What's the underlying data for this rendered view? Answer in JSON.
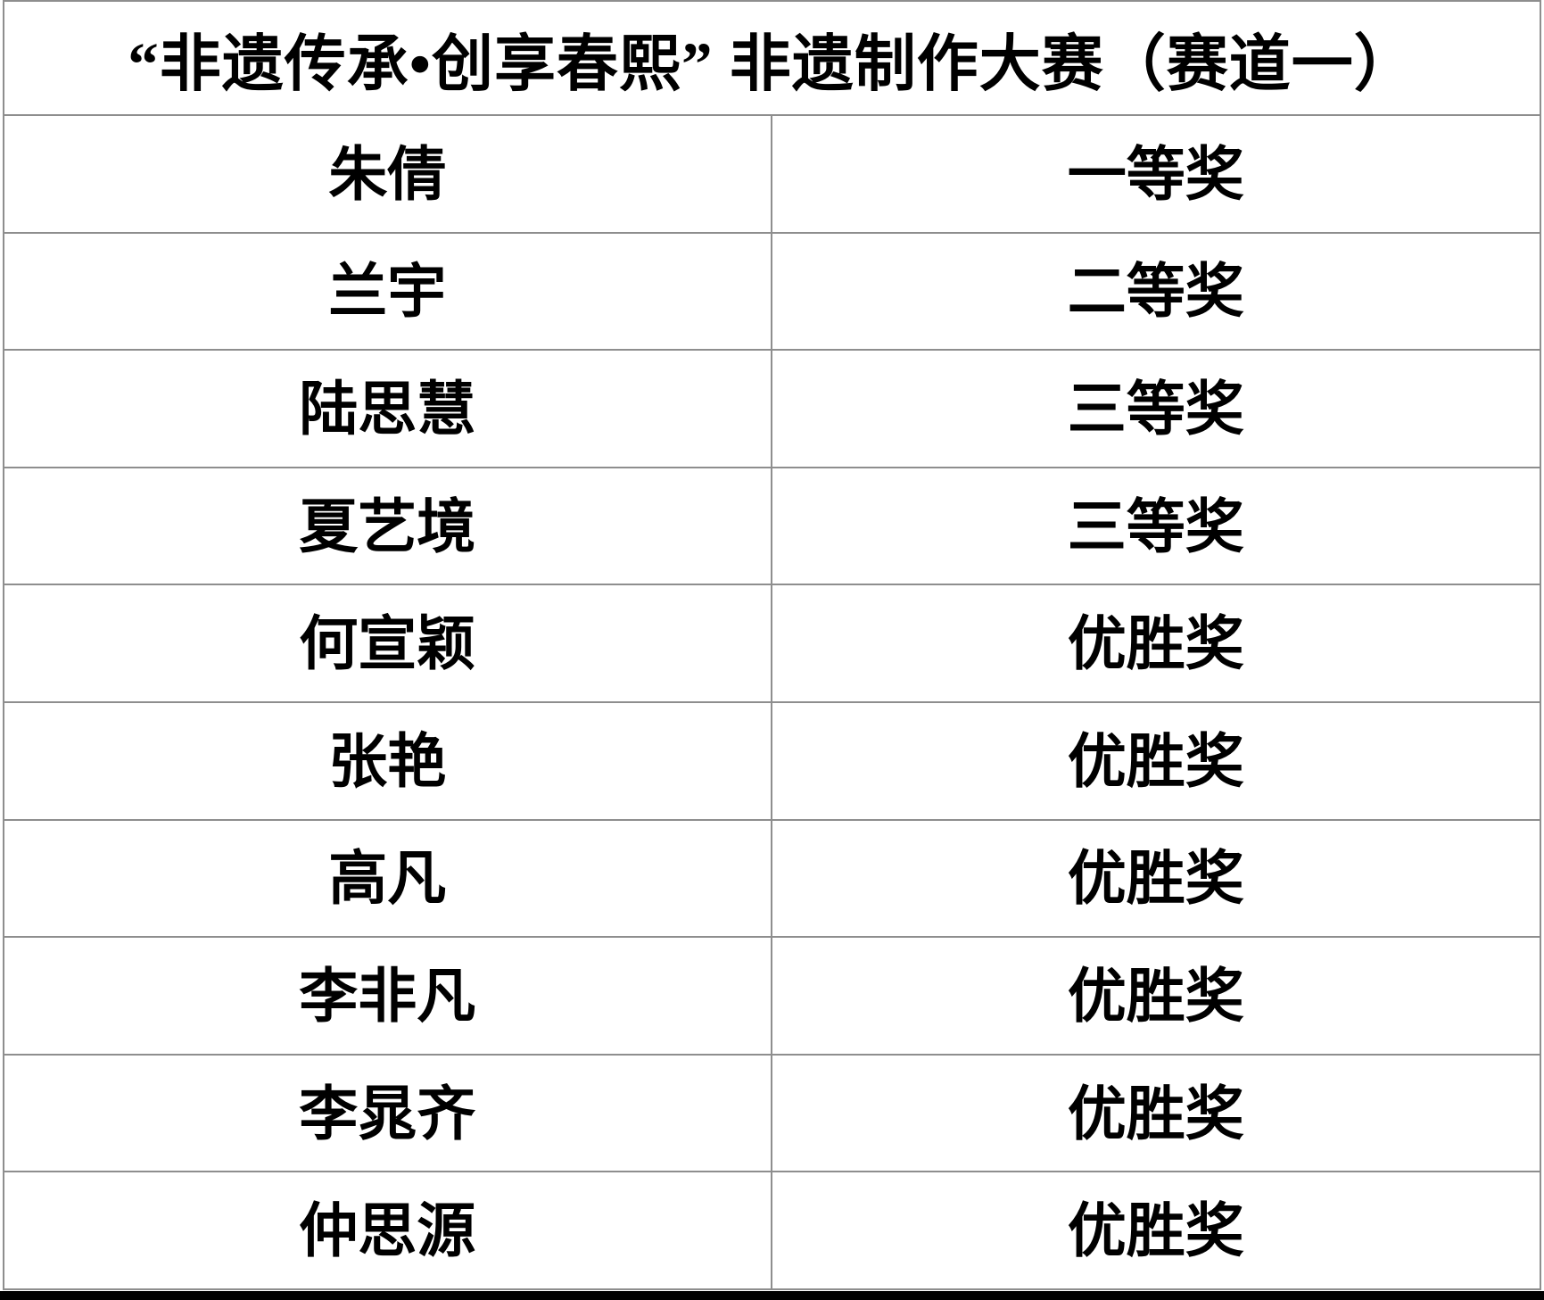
{
  "title": "“非遗传承•创享春熙” 非遗制作大赛（赛道一）",
  "table": {
    "rows": [
      {
        "name": "朱倩",
        "award": "一等奖"
      },
      {
        "name": "兰宇",
        "award": "二等奖"
      },
      {
        "name": "陆思慧",
        "award": "三等奖"
      },
      {
        "name": "夏艺境",
        "award": "三等奖"
      },
      {
        "name": "何宣颖",
        "award": "优胜奖"
      },
      {
        "name": "张艳",
        "award": "优胜奖"
      },
      {
        "name": "高凡",
        "award": "优胜奖"
      },
      {
        "name": "李非凡",
        "award": "优胜奖"
      },
      {
        "name": "李晁齐",
        "award": "优胜奖"
      },
      {
        "name": "仲思源",
        "award": "优胜奖"
      }
    ]
  },
  "colors": {
    "border": "#8e8e8e",
    "text": "#000000",
    "bottom_bar": "#000000"
  }
}
